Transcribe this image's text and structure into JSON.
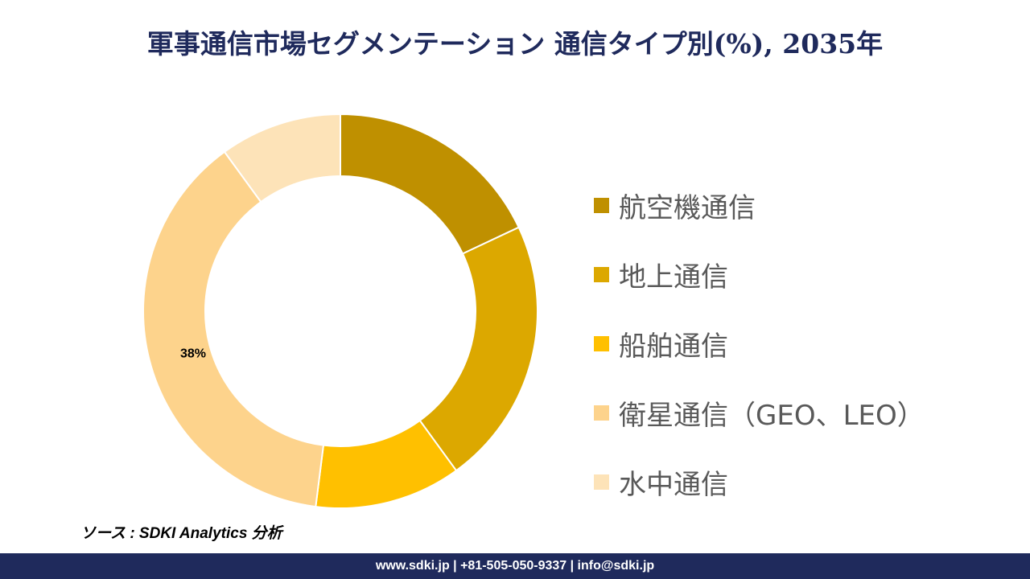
{
  "chart_data": {
    "type": "pie",
    "title": "軍事通信市場セグメンテーション 通信タイプ別(%), 2035年",
    "categories": [
      "航空機通信",
      "地上通信",
      "船舶通信",
      "衛星通信（GEO、LEO）",
      "水中通信"
    ],
    "values": [
      18,
      22,
      12,
      38,
      10
    ],
    "colors": [
      "#BF9000",
      "#DCA800",
      "#FFC000",
      "#FDD38C",
      "#FDE3B8"
    ],
    "data_labels": [
      {
        "category": "衛星通信（GEO、LEO）",
        "text": "38%"
      }
    ],
    "donut": true,
    "legend_placement": "right"
  },
  "source": "ソース : SDKI Analytics 分析",
  "footer": "www.sdki.jp | +81-505-050-9337 | info@sdki.jp"
}
